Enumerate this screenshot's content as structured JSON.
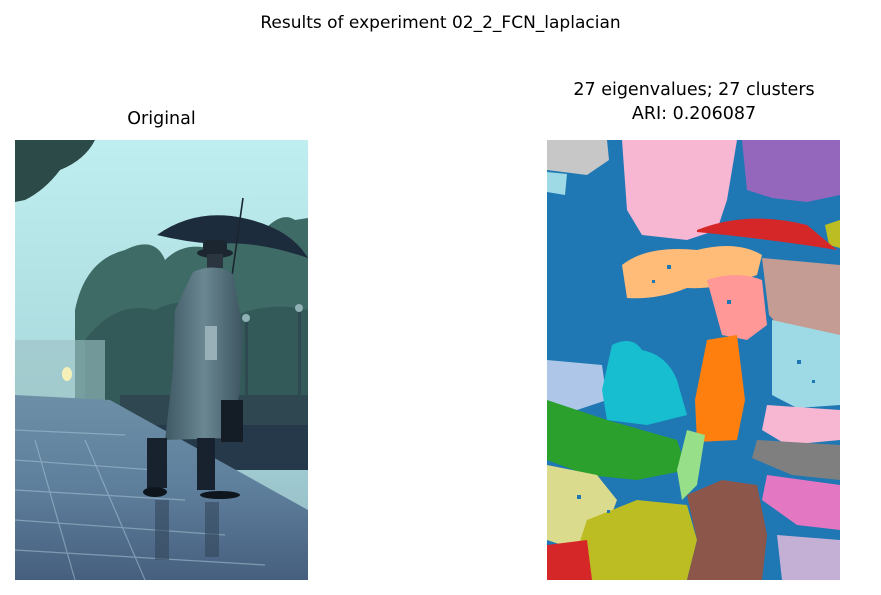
{
  "figure": {
    "suptitle": "Results of experiment 02_2_FCN_laplacian"
  },
  "panels": [
    {
      "title": "Original",
      "image": "photo of a man in a trench coat and hat holding an umbrella on a rainy train platform"
    },
    {
      "title_line1": "27 eigenvalues; 27 clusters",
      "title_line2": "ARI: 0.206087",
      "image": "segmentation map with 27 colored clusters"
    }
  ],
  "colors": {
    "background": "#ffffff",
    "text": "#000000"
  }
}
